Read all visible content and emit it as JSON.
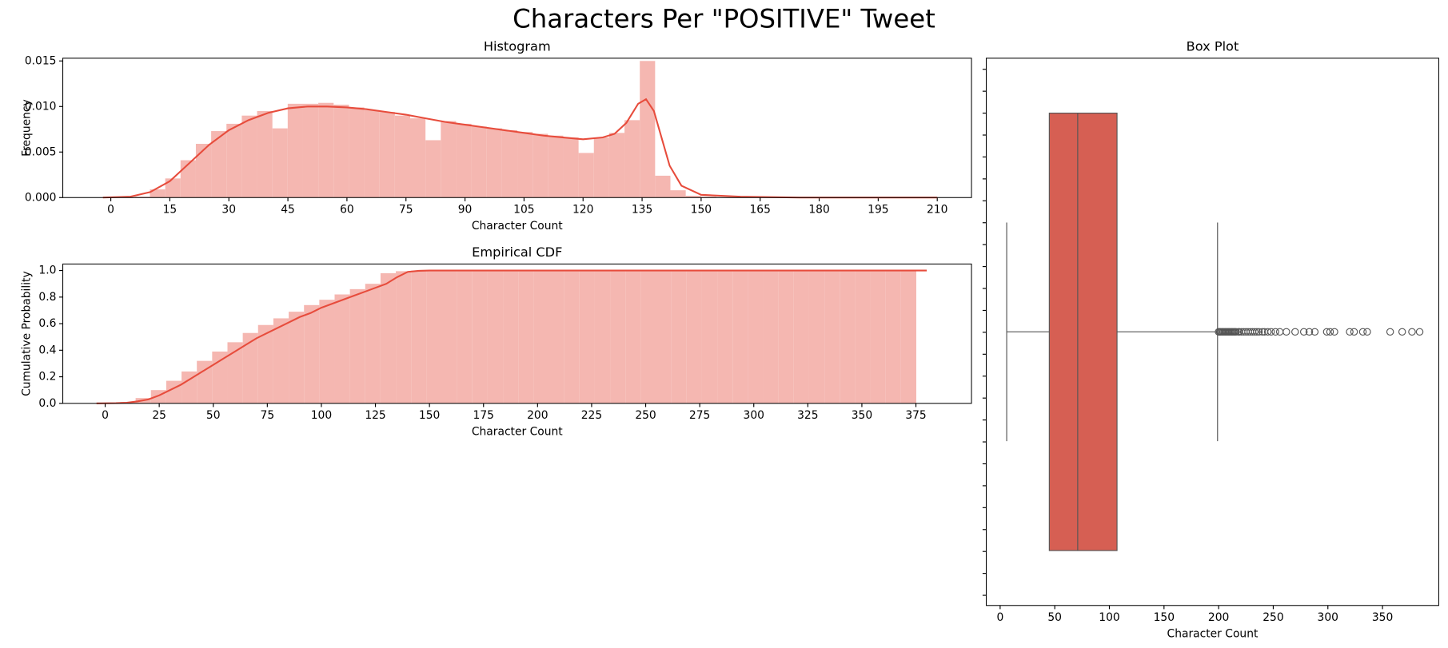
{
  "title": "Characters Per \"POSITIVE\" Tweet",
  "chart_data": [
    {
      "type": "histogram",
      "title": "Histogram",
      "xlabel": "Character Count",
      "ylabel": "Frequency",
      "color": "#f5b7b1",
      "line_color": "#e74c3c",
      "xlim": [
        -12.2,
        218.7
      ],
      "ylim": [
        0,
        0.0153
      ],
      "xticks": [
        0,
        15,
        30,
        45,
        60,
        75,
        90,
        105,
        120,
        135,
        150,
        165,
        180,
        195,
        210
      ],
      "yticks": [
        {
          "value": 0,
          "label": "0.000"
        },
        0.005,
        {
          "value": 0.01,
          "label": "0.010"
        },
        0.015
      ],
      "bins": [
        6.05,
        9.94,
        13.83,
        17.72,
        21.61,
        25.5,
        29.39,
        33.28,
        37.17,
        41.06,
        44.95,
        48.84,
        52.73,
        56.62,
        60.51,
        64.4,
        68.29,
        72.18,
        76.07,
        79.96,
        83.85,
        87.74,
        91.63,
        95.52,
        99.41,
        103.3,
        107.19,
        111.08,
        114.97,
        118.86,
        122.75,
        126.64,
        130.53,
        134.42,
        138.31,
        142.2,
        146.09,
        149.98,
        153.87
      ],
      "values": [
        0.0001,
        0.0009,
        0.0021,
        0.0041,
        0.0059,
        0.0073,
        0.0081,
        0.009,
        0.0095,
        0.0076,
        0.0103,
        0.0103,
        0.0104,
        0.0102,
        0.0099,
        0.0096,
        0.0094,
        0.009,
        0.0087,
        0.0063,
        0.0084,
        0.0081,
        0.0078,
        0.0076,
        0.0074,
        0.0072,
        0.007,
        0.0068,
        0.0066,
        0.0049,
        0.0066,
        0.0071,
        0.0085,
        0.015,
        0.0024,
        0.0008,
        0.0002,
        0.0001
      ],
      "line_x": [
        -2,
        5,
        10,
        15,
        20,
        25,
        30,
        35,
        40,
        45,
        50,
        55,
        60,
        65,
        70,
        75,
        80,
        85,
        90,
        95,
        100,
        105,
        110,
        115,
        120,
        125,
        128,
        131,
        134,
        136,
        138,
        140,
        142,
        145,
        150,
        160,
        175,
        210
      ],
      "line_y": [
        0,
        0.0001,
        0.0006,
        0.0018,
        0.0038,
        0.0058,
        0.0074,
        0.0085,
        0.0093,
        0.0098,
        0.01,
        0.01,
        0.0099,
        0.0097,
        0.0094,
        0.0091,
        0.0087,
        0.0083,
        0.008,
        0.0077,
        0.0074,
        0.0071,
        0.0068,
        0.0066,
        0.0064,
        0.0066,
        0.007,
        0.0082,
        0.0103,
        0.0108,
        0.0095,
        0.0065,
        0.0035,
        0.0013,
        0.0003,
        0.0001,
        0,
        0
      ]
    },
    {
      "type": "histogram",
      "title": "Empirical CDF",
      "xlabel": "Character Count",
      "ylabel": "Cumulative Probability",
      "color": "#f5b7b1",
      "line_color": "#e74c3c",
      "xlim": [
        -19.6,
        400.7
      ],
      "ylim": [
        0,
        1.049
      ],
      "xticks": [
        0,
        25,
        50,
        75,
        100,
        125,
        150,
        175,
        200,
        225,
        250,
        275,
        300,
        325,
        350,
        375
      ],
      "yticks": [
        {
          "value": 0,
          "label": "0.0"
        },
        0.2,
        0.4,
        0.6,
        0.8,
        {
          "value": 1,
          "label": "1.0"
        }
      ],
      "bins": [
        7,
        14.08,
        21.16,
        28.24,
        35.32,
        42.4,
        49.48,
        56.56,
        63.64,
        70.72,
        77.8,
        84.88,
        91.96,
        99.04,
        106.12,
        113.2,
        120.28,
        127.36,
        134.44,
        141.52,
        148.6,
        155.68,
        162.76,
        169.84,
        176.92,
        184,
        191.08,
        198.16,
        205.24,
        212.32,
        219.4,
        226.48,
        233.56,
        240.64,
        247.72,
        254.8,
        261.88,
        268.96,
        276.04,
        283.12,
        290.2,
        297.28,
        304.36,
        311.44,
        318.52,
        325.6,
        332.68,
        339.76,
        346.84,
        353.92,
        361,
        368.08,
        375.16
      ],
      "values": [
        0.01,
        0.04,
        0.1,
        0.17,
        0.24,
        0.32,
        0.39,
        0.46,
        0.53,
        0.59,
        0.64,
        0.69,
        0.74,
        0.78,
        0.82,
        0.86,
        0.9,
        0.98,
        0.995,
        0.999,
        1,
        1,
        1,
        1,
        1,
        1,
        1,
        1,
        1,
        1,
        1,
        1,
        1,
        1,
        1,
        1,
        1,
        1,
        1,
        1,
        1,
        1,
        1,
        1,
        1,
        1,
        1,
        1,
        1,
        1,
        1,
        1
      ],
      "line_x": [
        -4,
        5,
        10,
        15,
        20,
        25,
        30,
        35,
        40,
        45,
        50,
        55,
        60,
        65,
        70,
        75,
        80,
        85,
        90,
        95,
        100,
        105,
        110,
        115,
        120,
        125,
        130,
        135,
        140,
        145,
        150,
        380
      ],
      "line_y": [
        0,
        0.002,
        0.005,
        0.015,
        0.03,
        0.06,
        0.1,
        0.14,
        0.19,
        0.24,
        0.29,
        0.34,
        0.39,
        0.44,
        0.49,
        0.53,
        0.57,
        0.61,
        0.65,
        0.68,
        0.72,
        0.75,
        0.78,
        0.81,
        0.84,
        0.87,
        0.9,
        0.95,
        0.99,
        0.998,
        1,
        1
      ]
    },
    {
      "type": "box",
      "title": "Box Plot",
      "xlabel": "Character Count",
      "color": "#d65f53",
      "xlim": [
        -12.7,
        401.5
      ],
      "xticks": [
        0,
        50,
        100,
        150,
        200,
        250,
        300,
        350
      ],
      "min": 6,
      "q1": 45,
      "median": 71,
      "q3": 107,
      "max": 199,
      "outliers": [
        200,
        201,
        202,
        203,
        204,
        205,
        206,
        207,
        208,
        209,
        210,
        211,
        212,
        213,
        214,
        215,
        216,
        218,
        219,
        221,
        223,
        225,
        227,
        229,
        231,
        233,
        235,
        237,
        240,
        242,
        245,
        248,
        252,
        256,
        262,
        270,
        278,
        283,
        288,
        299,
        302,
        306,
        320,
        324,
        332,
        336,
        357,
        368,
        377,
        384
      ]
    }
  ]
}
